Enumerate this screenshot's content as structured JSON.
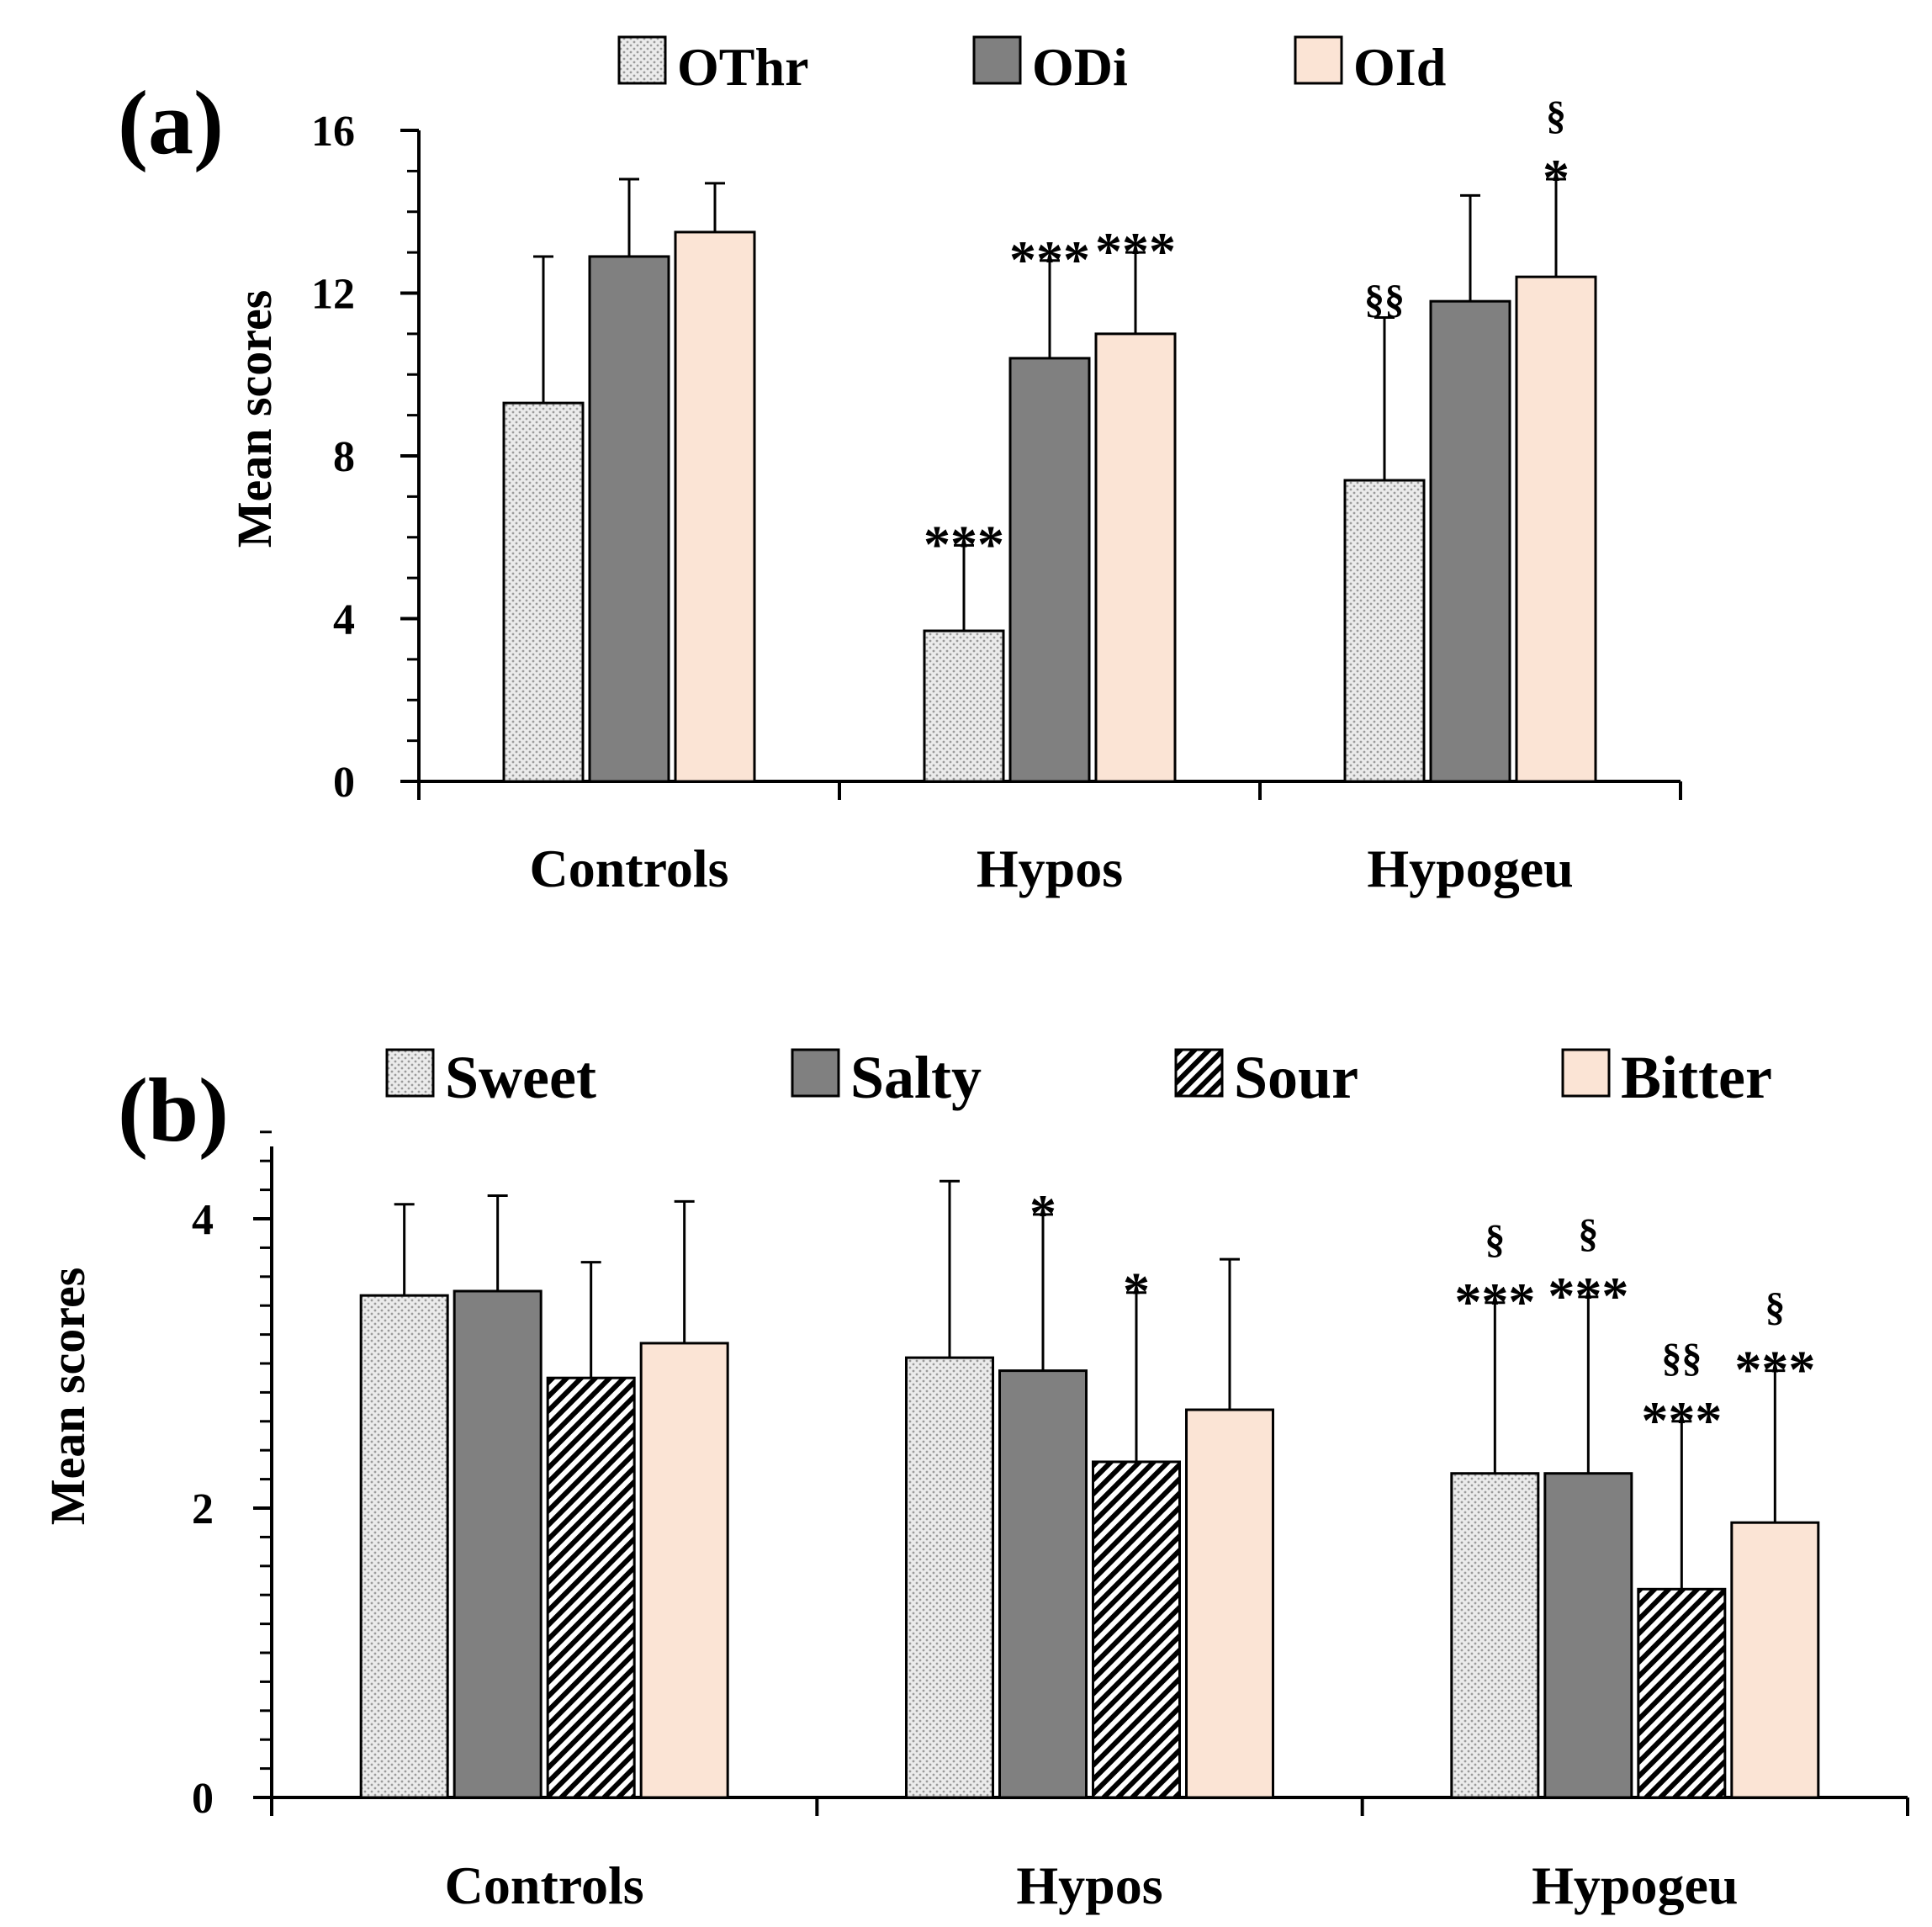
{
  "colors": {
    "dotted_fill": "#ebebeb",
    "dot": "#9a9a9a",
    "dark_gray": "#808080",
    "peach": "#fbe4d5",
    "hatch_bg": "#ffffff",
    "stroke": "#000000"
  },
  "chart_data": [
    {
      "panel_label": "(a)",
      "type": "bar",
      "ylabel": "Mean scores",
      "xlabel": "",
      "ylim": [
        0,
        16
      ],
      "yticks": [
        "0",
        "4",
        "8",
        "12",
        "16"
      ],
      "minor_tick_step": 1,
      "categories": [
        "Controls",
        "Hypos",
        "Hypogeu"
      ],
      "series": [
        {
          "name": "OThr",
          "pattern": "dots",
          "values": [
            9.3,
            3.7,
            7.4
          ],
          "errors": [
            3.6,
            2.1,
            4.0
          ],
          "annotations": [
            [],
            [
              "***"
            ],
            [
              "§§"
            ]
          ]
        },
        {
          "name": "ODi",
          "pattern": "dark",
          "values": [
            12.9,
            10.4,
            11.8
          ],
          "errors": [
            1.9,
            2.4,
            2.6
          ],
          "annotations": [
            [],
            [
              "***"
            ],
            []
          ]
        },
        {
          "name": "OId",
          "pattern": "peach",
          "values": [
            13.5,
            11.0,
            12.4
          ],
          "errors": [
            1.2,
            2.0,
            2.4
          ],
          "annotations": [
            [],
            [
              "***"
            ],
            [
              "*",
              "§"
            ]
          ]
        }
      ]
    },
    {
      "panel_label": "(b)",
      "type": "bar",
      "ylabel": "Mean scores",
      "xlabel": "",
      "ylim": [
        0,
        4.5
      ],
      "yticks": [
        "0",
        "2",
        "4"
      ],
      "minor_tick_step": 0.2,
      "categories": [
        "Controls",
        "Hypos",
        "Hypogeu"
      ],
      "series": [
        {
          "name": "Sweet",
          "pattern": "dots",
          "values": [
            3.47,
            3.04,
            2.24
          ],
          "errors": [
            0.63,
            1.22,
            1.18
          ],
          "annotations": [
            [],
            [],
            [
              "***",
              "§"
            ]
          ]
        },
        {
          "name": "Salty",
          "pattern": "dark",
          "values": [
            3.5,
            2.95,
            2.24
          ],
          "errors": [
            0.66,
            1.08,
            1.22
          ],
          "annotations": [
            [],
            [
              "*"
            ],
            [
              "***",
              "§"
            ]
          ]
        },
        {
          "name": "Sour",
          "pattern": "hatch",
          "values": [
            2.9,
            2.32,
            1.44
          ],
          "errors": [
            0.8,
            1.17,
            1.16
          ],
          "annotations": [
            [],
            [
              "*"
            ],
            [
              "***",
              "§§"
            ]
          ]
        },
        {
          "name": "Bitter",
          "pattern": "peach",
          "values": [
            3.14,
            2.68,
            1.9
          ],
          "errors": [
            0.98,
            1.04,
            1.05
          ],
          "annotations": [
            [],
            [],
            [
              "***",
              "§"
            ]
          ]
        }
      ]
    }
  ]
}
